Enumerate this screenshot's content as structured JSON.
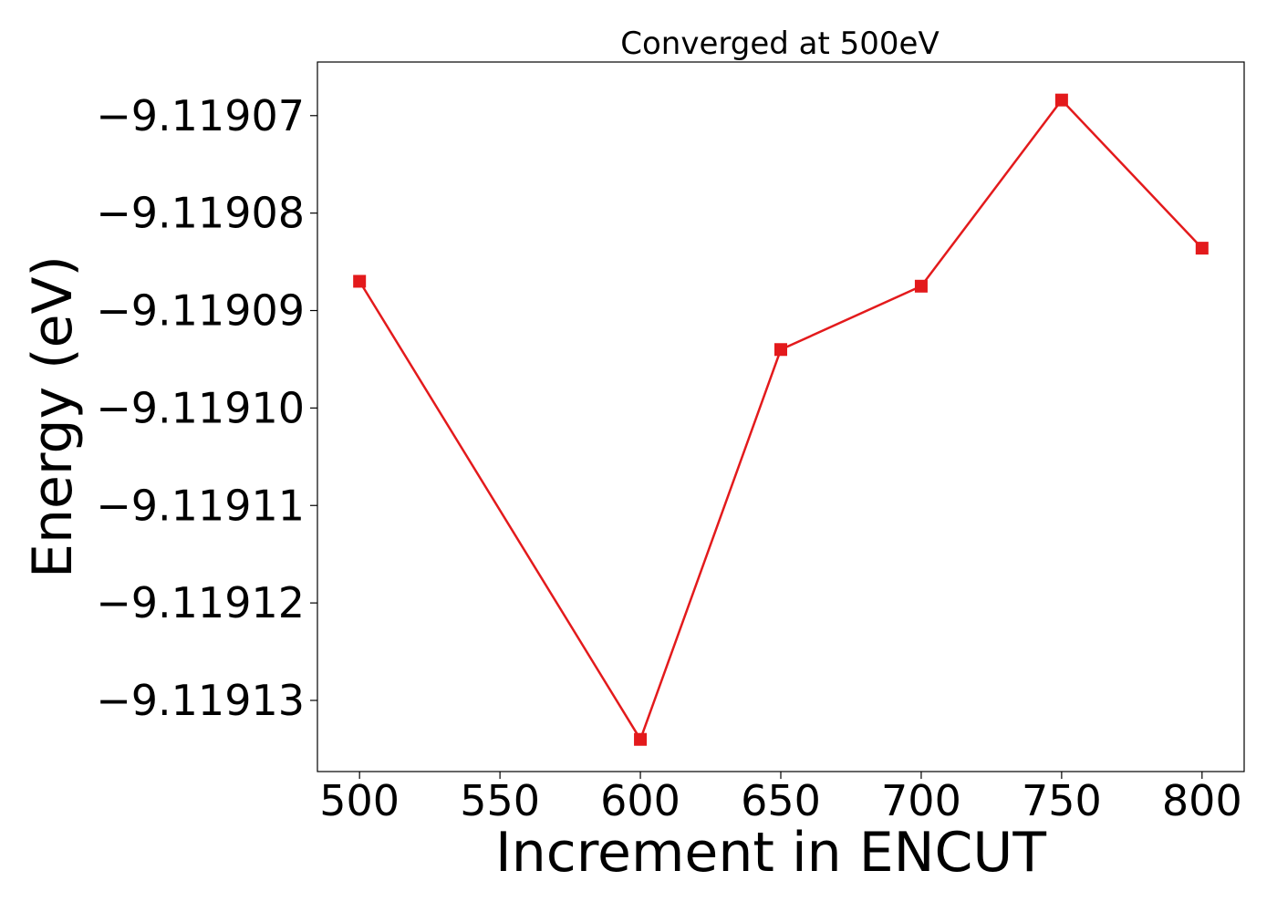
{
  "chart_data": {
    "type": "line",
    "title": "Converged at 500eV",
    "xlabel": "Increment in ENCUT",
    "ylabel": "Energy (eV)",
    "x": [
      500,
      600,
      650,
      700,
      750,
      800
    ],
    "series": [
      {
        "values": [
          -9.119087,
          -9.119134,
          -9.119094,
          -9.1190875,
          -9.1190684,
          -9.1190836
        ],
        "color": "#e31a1c",
        "marker": "square"
      }
    ],
    "xlim": [
      485,
      815
    ],
    "ylim": [
      -9.1191373,
      -9.1190645
    ],
    "xticks": [
      500,
      550,
      600,
      650,
      700,
      750,
      800
    ],
    "xtick_labels": [
      "500",
      "550",
      "600",
      "650",
      "700",
      "750",
      "800"
    ],
    "yticks": [
      -9.11907,
      -9.11908,
      -9.11909,
      -9.1191,
      -9.11911,
      -9.11912,
      -9.11913
    ],
    "ytick_labels": [
      "−9.11907",
      "−9.11908",
      "−9.11909",
      "−9.11910",
      "−9.11911",
      "−9.11912",
      "−9.11913"
    ],
    "grid": false,
    "legend": "none"
  }
}
